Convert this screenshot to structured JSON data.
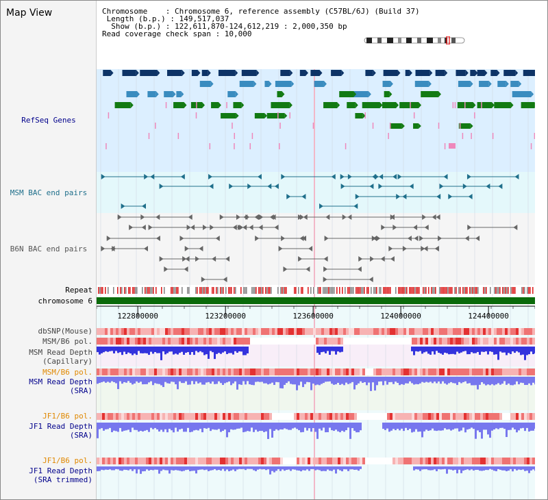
{
  "app_title": "Map View",
  "info": {
    "chromosome": "Chromosome    : Chromosome 6, reference assembly (C57BL/6J) (Build 37)",
    "length": " Length (b.p.) : 149,517,037",
    "show": "  Show (b.p.) : 122,611,870-124,612,219 : 2,000,350 bp",
    "coverage": "Read coverage check span : 10,000"
  },
  "tracks": {
    "refseq": "RefSeq Genes",
    "msm_bac": "MSM BAC end pairs",
    "b6n_bac": "B6N BAC end pairs",
    "repeat": "Repeat",
    "chromosome": "chromosome 6",
    "dbsnp": "dbSNP(Mouse)",
    "msm_pol_1": "MSM/B6 pol.",
    "msm_depth_cap_1": "MSM Read Depth",
    "msm_depth_cap_2": "(Capillary)",
    "msm_pol_2": "MSM/B6 pol.",
    "msm_depth_sra_1": "MSM Read Depth",
    "msm_depth_sra_2": "(SRA)",
    "jf1_pol_1": "JF1/B6 pol.",
    "jf1_depth_sra_1": "JF1 Read Depth",
    "jf1_depth_sra_2": "(SRA)",
    "jf1_pol_2": "JF1/B6 pol.",
    "jf1_depth_trim_1": "JF1 Read Depth",
    "jf1_depth_trim_2": "(SRA trimmed)"
  },
  "axis": {
    "ticks": [
      {
        "value": 122800000,
        "label": "122800000"
      },
      {
        "value": 123200000,
        "label": "123200000"
      },
      {
        "value": 123600000,
        "label": "123600000"
      },
      {
        "value": 124000000,
        "label": "124000000"
      },
      {
        "value": 124400000,
        "label": "124400000"
      }
    ],
    "range_start": 122611870,
    "range_end": 124612219
  },
  "colors": {
    "gene_dark": "#0d3366",
    "gene_mid": "#3a8cbf",
    "gene_green": "#127a12",
    "gene_pink": "#ee88bb",
    "msm_bac": "#1f6f8b",
    "b6n_bac": "#666666",
    "repeat_red": "#dd2222",
    "chromosome": "#0a6a0a",
    "label_blue": "#00008b",
    "label_orange": "#e08800",
    "depth_blue": "#3333dd",
    "depth_light": "#7777ee"
  }
}
